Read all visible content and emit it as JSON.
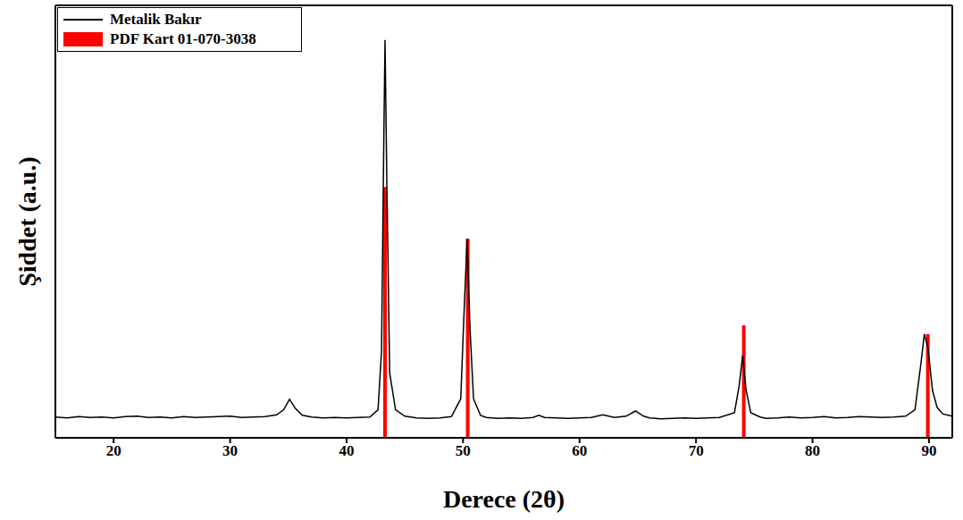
{
  "chart_data": {
    "type": "line",
    "xlabel": "Derece (2θ)",
    "ylabel": "Şiddet (a.u.)",
    "xlim": [
      15,
      92
    ],
    "xticks": [
      20,
      30,
      40,
      50,
      60,
      70,
      80,
      90
    ],
    "ylim": [
      0,
      100
    ],
    "tick_labels": "x",
    "grid": false,
    "legend": "upper left",
    "series": [
      {
        "name": "Metalik Bakır",
        "type": "line",
        "color": "#000000",
        "x": [
          15,
          16,
          17,
          18,
          19,
          20,
          21,
          22,
          23,
          24,
          25,
          26,
          27,
          28,
          29,
          30,
          31,
          32,
          33,
          34,
          34.6,
          35.1,
          35.6,
          36.2,
          37,
          38,
          39,
          40,
          41,
          42,
          42.7,
          43.0,
          43.2,
          43.3,
          43.45,
          43.7,
          44.2,
          45,
          46,
          47,
          48,
          49,
          49.8,
          50.1,
          50.35,
          50.6,
          50.9,
          51.5,
          52,
          53,
          54,
          55,
          56,
          56.5,
          57,
          58,
          59,
          60,
          61,
          62,
          63,
          64,
          64.8,
          65.5,
          66,
          67,
          68,
          69,
          70,
          71,
          72,
          73.3,
          73.7,
          74.0,
          74.3,
          74.7,
          75.5,
          76,
          77,
          78,
          79,
          80,
          81,
          82,
          83,
          84,
          85,
          86,
          87,
          88,
          88.8,
          89.3,
          89.6,
          89.9,
          90.3,
          90.7,
          91.2,
          92
        ],
        "values": [
          4.8,
          4.6,
          4.9,
          4.7,
          4.8,
          4.6,
          4.9,
          5.0,
          4.7,
          4.8,
          4.6,
          4.9,
          4.7,
          4.8,
          4.9,
          5.0,
          4.7,
          4.8,
          4.9,
          5.3,
          6.5,
          8.9,
          6.8,
          5.2,
          4.8,
          4.6,
          4.7,
          4.6,
          4.7,
          4.8,
          6.5,
          20,
          70,
          92,
          60,
          15,
          6.5,
          5.0,
          4.6,
          4.5,
          4.6,
          4.9,
          9,
          30,
          46,
          25,
          9,
          5.2,
          4.7,
          4.5,
          4.6,
          4.5,
          4.7,
          5.2,
          4.7,
          4.6,
          4.5,
          4.6,
          4.7,
          5.3,
          4.7,
          5.0,
          6.2,
          5.0,
          4.6,
          4.4,
          4.5,
          4.6,
          4.5,
          4.6,
          4.7,
          5.8,
          12,
          19,
          11,
          5.8,
          4.8,
          4.5,
          4.6,
          4.8,
          4.6,
          4.7,
          4.9,
          4.6,
          4.7,
          4.9,
          4.8,
          4.7,
          4.8,
          5.0,
          6.5,
          17,
          24,
          21,
          11,
          7,
          5.5,
          5.0
        ]
      },
      {
        "name": "PDF Kart 01-070-3038",
        "type": "bar",
        "color": "#ff0000",
        "x": [
          43.3,
          50.4,
          74.1,
          89.9
        ],
        "values": [
          58,
          46,
          26,
          24
        ]
      }
    ]
  }
}
